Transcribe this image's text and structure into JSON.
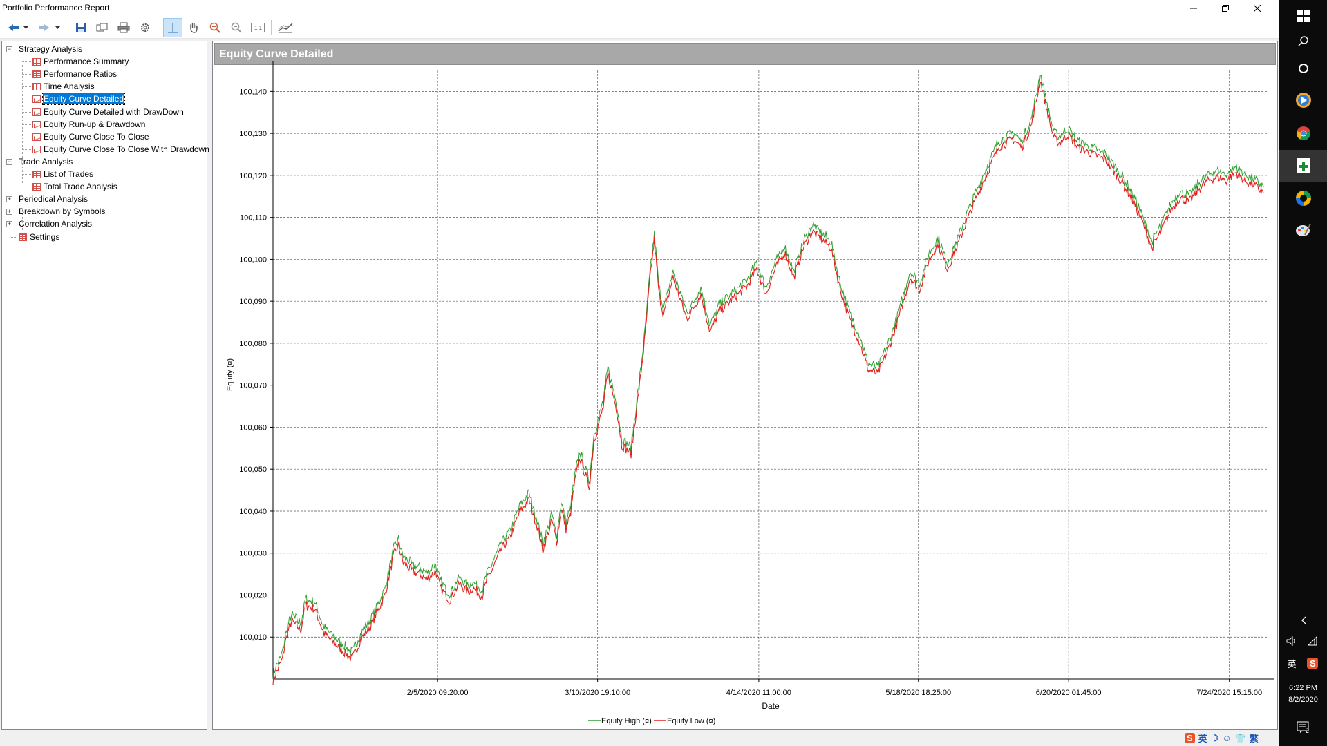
{
  "window": {
    "title": "Portfolio Performance Report",
    "controls": [
      "minimize",
      "restore",
      "close"
    ]
  },
  "toolbar": {
    "buttons": [
      "back-icon",
      "dropdown-icon",
      "forward-icon",
      "dropdown-icon",
      "save-icon",
      "export-icon",
      "print-icon",
      "settings-icon",
      "crosshair-icon",
      "pan-hand-icon",
      "zoom-in-icon",
      "zoom-out-icon",
      "zoom-reset-icon",
      "chart-style-icon"
    ]
  },
  "tree": {
    "nodes": [
      {
        "label": "Strategy Analysis",
        "level": 0,
        "expander": "-"
      },
      {
        "label": "Performance Summary",
        "level": 1,
        "icon": "grid-icon"
      },
      {
        "label": "Performance Ratios",
        "level": 1,
        "icon": "grid-icon"
      },
      {
        "label": "Time Analysis",
        "level": 1,
        "icon": "grid-icon"
      },
      {
        "label": "Equity Curve Detailed",
        "level": 1,
        "icon": "chart-icon",
        "selected": true
      },
      {
        "label": "Equity Curve Detailed with DrawDown",
        "level": 1,
        "icon": "chart-icon"
      },
      {
        "label": "Equity Run-up & Drawdown",
        "level": 1,
        "icon": "chart-icon"
      },
      {
        "label": "Equity Curve Close To Close",
        "level": 1,
        "icon": "chart-icon"
      },
      {
        "label": "Equity Curve Close To Close With Drawdown",
        "level": 1,
        "icon": "chart-icon"
      },
      {
        "label": "Trade Analysis",
        "level": 0,
        "expander": "-"
      },
      {
        "label": "List of Trades",
        "level": 1,
        "icon": "grid-icon"
      },
      {
        "label": "Total Trade Analysis",
        "level": 1,
        "icon": "grid-icon"
      },
      {
        "label": "Periodical Analysis",
        "level": 0,
        "expander": "+"
      },
      {
        "label": "Breakdown by Symbols",
        "level": 0,
        "expander": "+"
      },
      {
        "label": "Correlation Analysis",
        "level": 0,
        "expander": "+"
      },
      {
        "label": "Settings",
        "level": 0,
        "icon": "grid-icon"
      }
    ]
  },
  "panel": {
    "title": "Equity Curve Detailed"
  },
  "chart_data": {
    "type": "line",
    "title": "",
    "xlabel": "Date",
    "ylabel": "Equity (¤)",
    "ylim": [
      100000,
      100145
    ],
    "yticks": [
      "100,010",
      "100,020",
      "100,030",
      "100,040",
      "100,050",
      "100,060",
      "100,070",
      "100,080",
      "100,090",
      "100,100",
      "100,110",
      "100,120",
      "100,130",
      "100,140"
    ],
    "ytick_values": [
      100010,
      100020,
      100030,
      100040,
      100050,
      100060,
      100070,
      100080,
      100090,
      100100,
      100110,
      100120,
      100130,
      100140
    ],
    "xlim": [
      "2020-01-01",
      "2020-08-02"
    ],
    "xticks": [
      "2/5/2020 09:20:00",
      "3/10/2020 19:10:00",
      "4/14/2020 11:00:00",
      "5/18/2020 18:25:00",
      "6/20/2020 01:45:00",
      "7/24/2020 15:15:00"
    ],
    "xtick_dates": [
      "2020-02-05T09:20",
      "2020-03-10T19:10",
      "2020-04-14T11:00",
      "2020-05-18T18:25",
      "2020-06-20T01:45",
      "2020-07-24T15:15"
    ],
    "grid": true,
    "legend": "bottom-center",
    "series": [
      {
        "name": "Equity High (¤)",
        "color": "#2e9e2e"
      },
      {
        "name": "Equity Low (¤)",
        "color": "#e0201b"
      }
    ],
    "x": [
      "2020-01-01",
      "2020-01-03",
      "2020-01-04",
      "2020-01-05",
      "2020-01-07",
      "2020-01-08",
      "2020-01-10",
      "2020-01-11",
      "2020-01-12",
      "2020-01-14",
      "2020-01-16",
      "2020-01-18",
      "2020-01-20",
      "2020-01-22",
      "2020-01-25",
      "2020-01-27",
      "2020-01-28",
      "2020-01-29",
      "2020-01-31",
      "2020-02-02",
      "2020-02-03",
      "2020-02-05",
      "2020-02-06",
      "2020-02-08",
      "2020-02-10",
      "2020-02-12",
      "2020-02-13",
      "2020-02-15",
      "2020-02-16",
      "2020-02-17",
      "2020-02-19",
      "2020-02-21",
      "2020-02-23",
      "2020-02-25",
      "2020-02-27",
      "2020-02-28",
      "2020-03-01",
      "2020-03-02",
      "2020-03-03",
      "2020-03-04",
      "2020-03-05",
      "2020-03-06",
      "2020-03-07",
      "2020-03-09",
      "2020-03-10",
      "2020-03-12",
      "2020-03-13",
      "2020-03-15",
      "2020-03-16",
      "2020-03-18",
      "2020-03-20",
      "2020-03-21",
      "2020-03-22",
      "2020-03-23",
      "2020-03-24",
      "2020-03-25",
      "2020-03-27",
      "2020-03-30",
      "2020-04-02",
      "2020-04-04",
      "2020-04-06",
      "2020-04-08",
      "2020-04-10",
      "2020-04-12",
      "2020-04-14",
      "2020-04-16",
      "2020-04-18",
      "2020-04-20",
      "2020-04-22",
      "2020-04-24",
      "2020-04-26",
      "2020-04-28",
      "2020-04-30",
      "2020-05-02",
      "2020-05-04",
      "2020-05-06",
      "2020-05-08",
      "2020-05-10",
      "2020-05-12",
      "2020-05-13",
      "2020-05-15",
      "2020-05-17",
      "2020-05-19",
      "2020-05-21",
      "2020-05-23",
      "2020-05-25",
      "2020-05-27",
      "2020-05-29",
      "2020-06-01",
      "2020-06-03",
      "2020-06-05",
      "2020-06-08",
      "2020-06-10",
      "2020-06-12",
      "2020-06-14",
      "2020-06-16",
      "2020-06-17",
      "2020-06-18",
      "2020-06-19",
      "2020-06-20",
      "2020-06-22",
      "2020-06-24",
      "2020-06-26",
      "2020-06-28",
      "2020-06-30",
      "2020-07-02",
      "2020-07-04",
      "2020-07-06",
      "2020-07-08",
      "2020-07-10",
      "2020-07-12",
      "2020-07-14",
      "2020-07-16",
      "2020-07-18",
      "2020-07-20",
      "2020-07-22",
      "2020-07-24",
      "2020-07-26",
      "2020-07-28",
      "2020-07-30",
      "2020-08-01"
    ],
    "y": [
      100000,
      100005,
      100011,
      100014,
      100012,
      100018,
      100017,
      100014,
      100011,
      100009,
      100007,
      100005,
      100010,
      100013,
      100020,
      100030,
      100032,
      100028,
      100026,
      100025,
      100024,
      100026,
      100022,
      100019,
      100023,
      100021,
      100022,
      100020,
      100024,
      100026,
      100031,
      100034,
      100040,
      100043,
      100036,
      100031,
      100038,
      100033,
      100041,
      100036,
      100040,
      100048,
      100053,
      100046,
      100057,
      100065,
      100073,
      100064,
      100056,
      100054,
      100072,
      100082,
      100095,
      100105,
      100092,
      100087,
      100096,
      100086,
      100092,
      100083,
      100088,
      100090,
      100092,
      100094,
      100098,
      100092,
      100098,
      100102,
      100096,
      100103,
      100107,
      100105,
      100103,
      100093,
      100086,
      100081,
      100074,
      100073,
      100078,
      100081,
      100088,
      100096,
      100093,
      100100,
      100104,
      100098,
      100103,
      100109,
      100117,
      100122,
      100127,
      100129,
      100127,
      100132,
      100143,
      100133,
      100129,
      100128,
      100129,
      100130,
      100127,
      100126,
      100125,
      100124,
      100121,
      100118,
      100114,
      100109,
      100103,
      100107,
      100112,
      100115,
      100114,
      100117,
      100119,
      100120,
      100119,
      100121,
      100119,
      100118,
      100116
    ]
  },
  "taskbar": {
    "icons": [
      "windows-start-icon",
      "search-icon",
      "cortana-icon",
      "media-player-icon",
      "chrome-icon",
      "spreadsheet-icon",
      "browser-icon",
      "paint-icon"
    ],
    "tray_icons": [
      "chevron-up-icon",
      "volume-icon",
      "network-icon",
      "ime-icon",
      "sogou-icon"
    ],
    "ime_label": "英",
    "time": "6:22 PM",
    "date": "8/2/2020",
    "notification_count": "2"
  },
  "imebar": {
    "items": [
      "S",
      "英",
      "☽",
      "☺",
      "👕",
      "繁"
    ]
  }
}
